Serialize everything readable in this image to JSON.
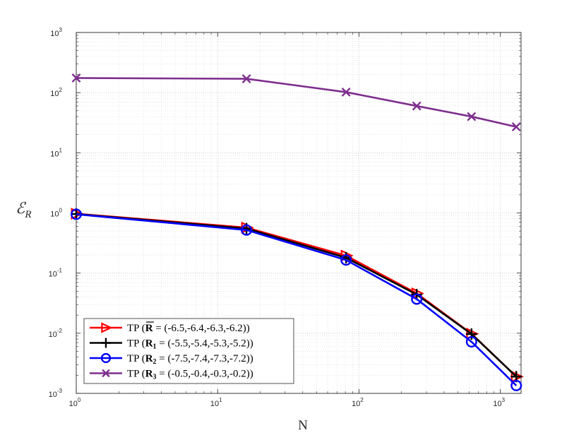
{
  "chart_data": {
    "type": "line",
    "xlabel": "N",
    "ylabel": "ℰ",
    "ylabel_sub": "R",
    "xscale": "log",
    "yscale": "log",
    "xlim": [
      1,
      1400
    ],
    "ylim": [
      0.001,
      1000
    ],
    "grid": true,
    "legend_position": "bottom-left",
    "x_ticks": [
      {
        "value": 1,
        "base": "10",
        "exp": "0"
      },
      {
        "value": 10,
        "base": "10",
        "exp": "1"
      },
      {
        "value": 100,
        "base": "10",
        "exp": "2"
      },
      {
        "value": 1000,
        "base": "10",
        "exp": "3"
      }
    ],
    "y_ticks": [
      {
        "value": 0.001,
        "base": "10",
        "exp": "-3"
      },
      {
        "value": 0.01,
        "base": "10",
        "exp": "-2"
      },
      {
        "value": 0.1,
        "base": "10",
        "exp": "-1"
      },
      {
        "value": 1,
        "base": "10",
        "exp": "0"
      },
      {
        "value": 10,
        "base": "10",
        "exp": "1"
      },
      {
        "value": 100,
        "base": "10",
        "exp": "2"
      },
      {
        "value": 1000,
        "base": "10",
        "exp": "3"
      }
    ],
    "series": [
      {
        "name": "TP (R̄ = (-6.5,-6.4,-6.3,-6.2))",
        "legend": {
          "prefix": "TP (",
          "symbol": "R",
          "overbar": true,
          "sub": "",
          "rest": " = (-6.5,-6.4,-6.3,-6.2))"
        },
        "color": "#ff0000",
        "marker": "triangle-right",
        "x": [
          1,
          16,
          81,
          256,
          625,
          1296
        ],
        "y": [
          0.97,
          0.57,
          0.195,
          0.046,
          0.0098,
          0.0019
        ]
      },
      {
        "name": "TP (R1 = (-5.5,-5.4,-5.3,-5.2))",
        "legend": {
          "prefix": "TP (",
          "symbol": "R",
          "overbar": false,
          "sub": "1",
          "rest": " = (-5.5,-5.4,-5.3,-5.2))"
        },
        "color": "#000000",
        "marker": "plus",
        "x": [
          1,
          16,
          81,
          256,
          625,
          1296
        ],
        "y": [
          0.96,
          0.55,
          0.18,
          0.044,
          0.0097,
          0.0019
        ]
      },
      {
        "name": "TP (R2 = (-7.5,-7.4,-7.3,-7.2))",
        "legend": {
          "prefix": "TP (",
          "symbol": "R",
          "overbar": false,
          "sub": "2",
          "rest": " = (-7.5,-7.4,-7.3,-7.2))"
        },
        "color": "#0000ff",
        "marker": "circle",
        "x": [
          1,
          16,
          81,
          256,
          625,
          1296
        ],
        "y": [
          0.95,
          0.52,
          0.165,
          0.037,
          0.0072,
          0.00135
        ]
      },
      {
        "name": "TP (R3 = (-0.5,-0.4,-0.3,-0.2))",
        "legend": {
          "prefix": "TP (",
          "symbol": "R",
          "overbar": false,
          "sub": "3",
          "rest": " = (-0.5,-0.4,-0.3,-0.2))"
        },
        "color": "#7e2f8e",
        "marker": "x",
        "x": [
          1,
          16,
          81,
          256,
          625,
          1296
        ],
        "y": [
          175,
          170,
          102,
          60,
          40,
          27
        ]
      }
    ]
  }
}
